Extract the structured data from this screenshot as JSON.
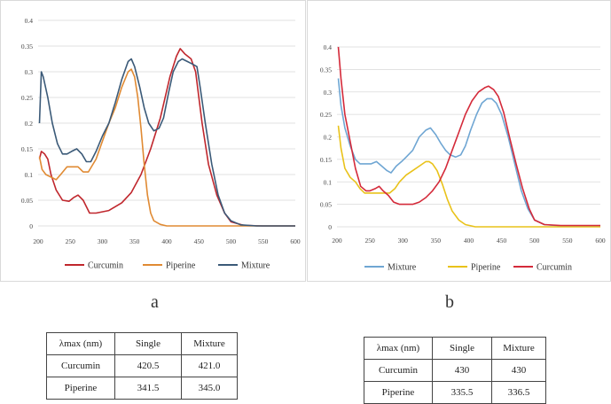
{
  "colors": {
    "curcumin": "#c0272d",
    "piperine": "#e08a33",
    "mixture": "#3b5a78",
    "curcumin_b": "#d42a3a",
    "piperine_b": "#e9c21a",
    "mixture_b": "#6fa6d3"
  },
  "chart_data": [
    {
      "panel": "a",
      "type": "line",
      "title": "",
      "xlabel": "",
      "ylabel": "",
      "xlim": [
        200,
        600
      ],
      "ylim": [
        0,
        0.4
      ],
      "x_ticks": [
        200,
        250,
        300,
        350,
        400,
        450,
        500,
        550,
        600
      ],
      "y_ticks": [
        "0",
        "0.05",
        "0.1",
        "0.15",
        "0.2",
        "0.25",
        "0.3",
        "0.35",
        "0.4"
      ],
      "grid": true,
      "legend_position": "bottom",
      "series": [
        {
          "name": "Curcumin",
          "color_key": "curcumin",
          "points": [
            [
              202,
              0.13
            ],
            [
              205,
              0.145
            ],
            [
              210,
              0.14
            ],
            [
              215,
              0.13
            ],
            [
              220,
              0.1
            ],
            [
              228,
              0.07
            ],
            [
              238,
              0.05
            ],
            [
              248,
              0.048
            ],
            [
              255,
              0.055
            ],
            [
              262,
              0.06
            ],
            [
              270,
              0.05
            ],
            [
              280,
              0.025
            ],
            [
              290,
              0.025
            ],
            [
              310,
              0.03
            ],
            [
              330,
              0.045
            ],
            [
              345,
              0.065
            ],
            [
              360,
              0.1
            ],
            [
              375,
              0.15
            ],
            [
              390,
              0.21
            ],
            [
              405,
              0.29
            ],
            [
              415,
              0.33
            ],
            [
              421,
              0.345
            ],
            [
              428,
              0.335
            ],
            [
              438,
              0.325
            ],
            [
              445,
              0.3
            ],
            [
              455,
              0.2
            ],
            [
              465,
              0.12
            ],
            [
              478,
              0.06
            ],
            [
              490,
              0.025
            ],
            [
              500,
              0.008
            ],
            [
              520,
              0.001
            ],
            [
              550,
              0
            ],
            [
              600,
              0
            ]
          ]
        },
        {
          "name": "Piperine",
          "color_key": "piperine",
          "points": [
            [
              202,
              0.135
            ],
            [
              206,
              0.11
            ],
            [
              212,
              0.1
            ],
            [
              220,
              0.095
            ],
            [
              228,
              0.09
            ],
            [
              235,
              0.1
            ],
            [
              245,
              0.115
            ],
            [
              255,
              0.115
            ],
            [
              262,
              0.115
            ],
            [
              270,
              0.105
            ],
            [
              278,
              0.105
            ],
            [
              290,
              0.13
            ],
            [
              300,
              0.165
            ],
            [
              310,
              0.2
            ],
            [
              320,
              0.23
            ],
            [
              330,
              0.27
            ],
            [
              340,
              0.3
            ],
            [
              345,
              0.305
            ],
            [
              350,
              0.29
            ],
            [
              355,
              0.25
            ],
            [
              360,
              0.19
            ],
            [
              365,
              0.12
            ],
            [
              370,
              0.06
            ],
            [
              375,
              0.025
            ],
            [
              380,
              0.01
            ],
            [
              390,
              0.003
            ],
            [
              400,
              0
            ],
            [
              600,
              0
            ]
          ]
        },
        {
          "name": "Mixture",
          "color_key": "mixture",
          "points": [
            [
              202,
              0.2
            ],
            [
              205,
              0.3
            ],
            [
              208,
              0.29
            ],
            [
              215,
              0.25
            ],
            [
              222,
              0.2
            ],
            [
              230,
              0.16
            ],
            [
              238,
              0.14
            ],
            [
              245,
              0.14
            ],
            [
              252,
              0.145
            ],
            [
              260,
              0.15
            ],
            [
              268,
              0.14
            ],
            [
              275,
              0.125
            ],
            [
              282,
              0.125
            ],
            [
              290,
              0.145
            ],
            [
              300,
              0.175
            ],
            [
              310,
              0.2
            ],
            [
              320,
              0.24
            ],
            [
              330,
              0.285
            ],
            [
              340,
              0.32
            ],
            [
              345,
              0.325
            ],
            [
              350,
              0.31
            ],
            [
              358,
              0.27
            ],
            [
              365,
              0.23
            ],
            [
              372,
              0.2
            ],
            [
              380,
              0.185
            ],
            [
              388,
              0.19
            ],
            [
              395,
              0.21
            ],
            [
              403,
              0.26
            ],
            [
              410,
              0.3
            ],
            [
              418,
              0.32
            ],
            [
              424,
              0.325
            ],
            [
              432,
              0.32
            ],
            [
              440,
              0.315
            ],
            [
              447,
              0.31
            ],
            [
              452,
              0.27
            ],
            [
              460,
              0.2
            ],
            [
              470,
              0.12
            ],
            [
              480,
              0.06
            ],
            [
              490,
              0.025
            ],
            [
              500,
              0.01
            ],
            [
              515,
              0.002
            ],
            [
              540,
              0
            ],
            [
              600,
              0
            ]
          ]
        }
      ]
    },
    {
      "panel": "b",
      "type": "line",
      "title": "",
      "xlabel": "",
      "ylabel": "",
      "xlim": [
        200,
        600
      ],
      "ylim": [
        0,
        0.4
      ],
      "x_ticks": [
        200,
        250,
        300,
        350,
        400,
        450,
        500,
        550,
        600
      ],
      "y_ticks": [
        "0",
        "0.05",
        "0.1",
        "0.15",
        "0.2",
        "0.25",
        "0.3",
        "0.35",
        "0.4"
      ],
      "grid": true,
      "legend_position": "bottom",
      "series": [
        {
          "name": "Mixture",
          "color_key": "mixture_b",
          "points": [
            [
              202,
              0.33
            ],
            [
              206,
              0.27
            ],
            [
              212,
              0.22
            ],
            [
              220,
              0.18
            ],
            [
              228,
              0.15
            ],
            [
              235,
              0.14
            ],
            [
              245,
              0.14
            ],
            [
              252,
              0.14
            ],
            [
              260,
              0.145
            ],
            [
              268,
              0.135
            ],
            [
              276,
              0.125
            ],
            [
              282,
              0.12
            ],
            [
              290,
              0.135
            ],
            [
              298,
              0.145
            ],
            [
              305,
              0.155
            ],
            [
              315,
              0.17
            ],
            [
              325,
              0.2
            ],
            [
              335,
              0.215
            ],
            [
              342,
              0.22
            ],
            [
              350,
              0.205
            ],
            [
              358,
              0.185
            ],
            [
              365,
              0.17
            ],
            [
              372,
              0.16
            ],
            [
              380,
              0.155
            ],
            [
              388,
              0.16
            ],
            [
              395,
              0.18
            ],
            [
              403,
              0.215
            ],
            [
              412,
              0.25
            ],
            [
              420,
              0.275
            ],
            [
              428,
              0.285
            ],
            [
              435,
              0.285
            ],
            [
              442,
              0.275
            ],
            [
              450,
              0.25
            ],
            [
              460,
              0.2
            ],
            [
              470,
              0.14
            ],
            [
              480,
              0.08
            ],
            [
              490,
              0.04
            ],
            [
              500,
              0.015
            ],
            [
              515,
              0.005
            ],
            [
              540,
              0.002
            ],
            [
              600,
              0.002
            ]
          ]
        },
        {
          "name": "Piperine",
          "color_key": "piperine_b",
          "points": [
            [
              202,
              0.225
            ],
            [
              206,
              0.175
            ],
            [
              212,
              0.13
            ],
            [
              220,
              0.11
            ],
            [
              228,
              0.1
            ],
            [
              235,
              0.085
            ],
            [
              242,
              0.075
            ],
            [
              250,
              0.075
            ],
            [
              258,
              0.075
            ],
            [
              265,
              0.075
            ],
            [
              272,
              0.075
            ],
            [
              280,
              0.075
            ],
            [
              288,
              0.085
            ],
            [
              295,
              0.1
            ],
            [
              305,
              0.115
            ],
            [
              315,
              0.125
            ],
            [
              325,
              0.135
            ],
            [
              335,
              0.145
            ],
            [
              340,
              0.145
            ],
            [
              345,
              0.14
            ],
            [
              352,
              0.125
            ],
            [
              360,
              0.095
            ],
            [
              368,
              0.06
            ],
            [
              375,
              0.035
            ],
            [
              385,
              0.015
            ],
            [
              395,
              0.005
            ],
            [
              410,
              0
            ],
            [
              600,
              0
            ]
          ]
        },
        {
          "name": "Curcumin",
          "color_key": "curcumin_b",
          "points": [
            [
              202,
              0.4
            ],
            [
              206,
              0.33
            ],
            [
              212,
              0.25
            ],
            [
              220,
              0.19
            ],
            [
              228,
              0.13
            ],
            [
              236,
              0.09
            ],
            [
              244,
              0.08
            ],
            [
              250,
              0.08
            ],
            [
              258,
              0.085
            ],
            [
              264,
              0.09
            ],
            [
              270,
              0.08
            ],
            [
              278,
              0.07
            ],
            [
              286,
              0.055
            ],
            [
              295,
              0.05
            ],
            [
              305,
              0.05
            ],
            [
              315,
              0.05
            ],
            [
              325,
              0.055
            ],
            [
              335,
              0.065
            ],
            [
              345,
              0.08
            ],
            [
              355,
              0.1
            ],
            [
              365,
              0.13
            ],
            [
              375,
              0.17
            ],
            [
              385,
              0.21
            ],
            [
              395,
              0.25
            ],
            [
              405,
              0.28
            ],
            [
              415,
              0.3
            ],
            [
              425,
              0.31
            ],
            [
              430,
              0.313
            ],
            [
              438,
              0.305
            ],
            [
              445,
              0.29
            ],
            [
              453,
              0.255
            ],
            [
              462,
              0.2
            ],
            [
              472,
              0.14
            ],
            [
              482,
              0.085
            ],
            [
              492,
              0.04
            ],
            [
              500,
              0.015
            ],
            [
              515,
              0.005
            ],
            [
              540,
              0.003
            ],
            [
              600,
              0.003
            ]
          ]
        }
      ]
    }
  ],
  "panel_labels": {
    "a": "a",
    "b": "b"
  },
  "tables": {
    "a": {
      "headers": [
        "λmax (nm)",
        "Single",
        "Mixture"
      ],
      "rows": [
        [
          "Curcumin",
          "420.5",
          "421.0"
        ],
        [
          "Piperine",
          "341.5",
          "345.0"
        ]
      ]
    },
    "b": {
      "headers": [
        "λmax (nm)",
        "Single",
        "Mixture"
      ],
      "rows": [
        [
          "Curcumin",
          "430",
          "430"
        ],
        [
          "Piperine",
          "335.5",
          "336.5"
        ]
      ]
    }
  }
}
